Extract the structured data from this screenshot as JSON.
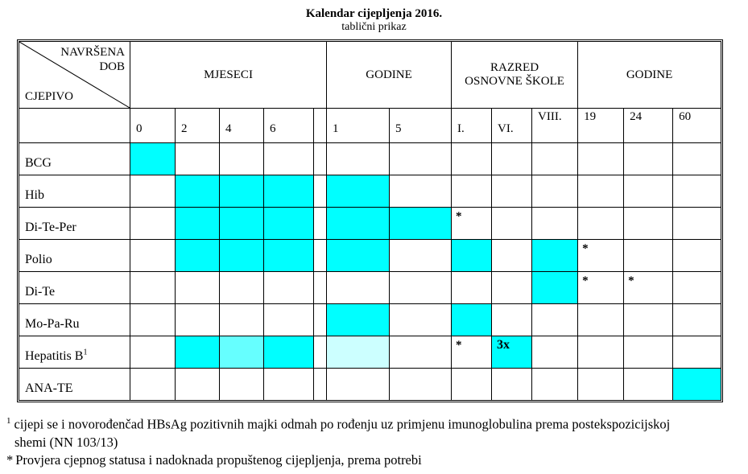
{
  "page": {
    "title": "Kalendar cijepljenja 2016.",
    "subtitle": "tablični prikaz"
  },
  "colors": {
    "highlight": "#00FFFF",
    "highlight_light": "#66FFFF",
    "highlight_pale": "#CCFFFF"
  },
  "table": {
    "corner": {
      "line1": "NAVRŠENA",
      "line2": "DOB",
      "bottom": "CJEPIVO"
    },
    "groups": [
      {
        "name": "months",
        "lines": [
          "MJESECI"
        ],
        "span": 5
      },
      {
        "name": "years-early",
        "lines": [
          "GODINE"
        ],
        "span": 2
      },
      {
        "name": "primary-school-grade",
        "lines": [
          "RAZRED",
          "OSNOVNE ŠKOLE"
        ],
        "span": 3
      },
      {
        "name": "years-adult",
        "lines": [
          "GODINE"
        ],
        "span": 3
      }
    ],
    "label_column_width": 138,
    "columns": [
      {
        "key": "m0",
        "label": "0",
        "width": 56,
        "label_pos": "bottom"
      },
      {
        "key": "m2",
        "label": "2",
        "width": 55,
        "label_pos": "bottom"
      },
      {
        "key": "m4",
        "label": "4",
        "width": 55,
        "label_pos": "bottom"
      },
      {
        "key": "m6",
        "label": "6",
        "width": 62,
        "label_pos": "bottom"
      },
      {
        "key": "spacer",
        "label": "",
        "width": 16,
        "label_pos": "bottom"
      },
      {
        "key": "y1",
        "label": "1",
        "width": 78,
        "label_pos": "bottom"
      },
      {
        "key": "y5",
        "label": "5",
        "width": 77,
        "label_pos": "bottom"
      },
      {
        "key": "os1",
        "label": "I.",
        "width": 50,
        "label_pos": "bottom"
      },
      {
        "key": "os6",
        "label": "VI.",
        "width": 50,
        "label_pos": "bottom"
      },
      {
        "key": "os8",
        "label": "VIII.",
        "width": 57,
        "label_pos": "top"
      },
      {
        "key": "g19",
        "label": "19",
        "width": 57,
        "label_pos": "top"
      },
      {
        "key": "g24",
        "label": "24",
        "width": 61,
        "label_pos": "top"
      },
      {
        "key": "g60",
        "label": "60",
        "width": 60,
        "label_pos": "top"
      }
    ],
    "rows": [
      {
        "label": "BCG",
        "sup": "",
        "cells": {
          "m0": {
            "fill": "highlight"
          }
        }
      },
      {
        "label": "Hib",
        "sup": "",
        "cells": {
          "m2": {
            "fill": "highlight"
          },
          "m4": {
            "fill": "highlight"
          },
          "m6": {
            "fill": "highlight"
          },
          "y1": {
            "fill": "highlight"
          }
        }
      },
      {
        "label": "Di-Te-Per",
        "sup": "",
        "cells": {
          "m2": {
            "fill": "highlight"
          },
          "m4": {
            "fill": "highlight"
          },
          "m6": {
            "fill": "highlight"
          },
          "y1": {
            "fill": "highlight"
          },
          "y5": {
            "fill": "highlight"
          },
          "os1": {
            "text": "*"
          }
        }
      },
      {
        "label": "Polio",
        "sup": "",
        "cells": {
          "m2": {
            "fill": "highlight"
          },
          "m4": {
            "fill": "highlight"
          },
          "m6": {
            "fill": "highlight"
          },
          "y1": {
            "fill": "highlight"
          },
          "os1": {
            "fill": "highlight"
          },
          "os8": {
            "fill": "highlight"
          },
          "g19": {
            "text": "*"
          }
        }
      },
      {
        "label": "Di-Te",
        "sup": "",
        "cells": {
          "os8": {
            "fill": "highlight"
          },
          "g19": {
            "text": "*"
          },
          "g24": {
            "text": "*"
          }
        }
      },
      {
        "label": "Mo-Pa-Ru",
        "sup": "",
        "cells": {
          "y1": {
            "fill": "highlight"
          },
          "os1": {
            "fill": "highlight"
          }
        }
      },
      {
        "label": "Hepatitis B",
        "sup": "1",
        "cells": {
          "m2": {
            "fill": "highlight"
          },
          "m4": {
            "fill": "highlight_light"
          },
          "m6": {
            "fill": "highlight"
          },
          "y1": {
            "fill": "highlight_pale"
          },
          "os1": {
            "text": "*"
          },
          "os6": {
            "text": "3x",
            "fill": "highlight",
            "bold": true
          }
        }
      },
      {
        "label": "ANA-TE",
        "sup": "",
        "cells": {
          "g60": {
            "fill": "highlight"
          }
        }
      }
    ]
  },
  "footnotes": {
    "note1": {
      "marker": "1",
      "line1": "cijepi se i novorođenčad HBsAg pozitivnih majki odmah po rođenju uz primjenu imunoglobulina prema postekspozicijskoj",
      "line2": "shemi (NN 103/13)"
    },
    "note2": {
      "marker": "*",
      "text": "Provjera cjepnog statusa i nadoknada propuštenog cijepljenja, prema potrebi"
    }
  }
}
